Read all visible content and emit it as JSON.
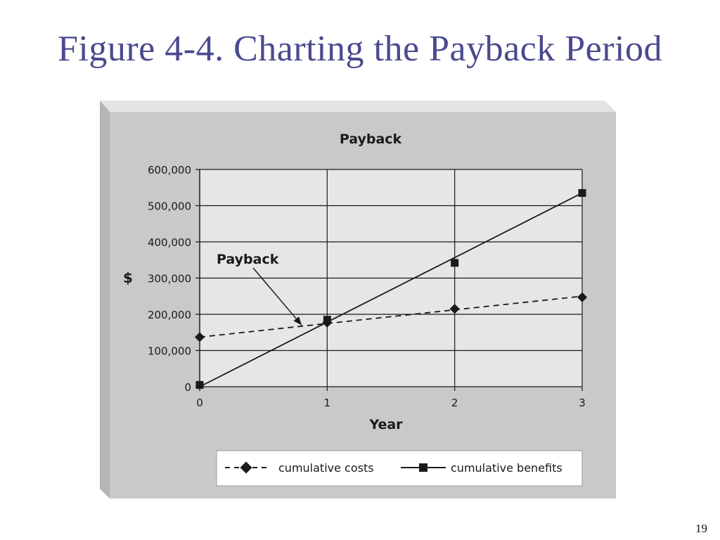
{
  "slide": {
    "title": "Figure 4-4. Charting the Payback Period",
    "page_number": "19"
  },
  "colors": {
    "title_color": "#4a4a8f",
    "panel_color": "#c9c9c9",
    "plot_area_color": "#e6e6e6",
    "ink_color": "#1a1a1a"
  },
  "chart_data": {
    "type": "line",
    "title": "Payback",
    "xlabel": "Year",
    "ylabel": "$",
    "x": [
      0,
      1,
      2,
      3
    ],
    "x_tick_labels": [
      "0",
      "1",
      "2",
      "3"
    ],
    "xlim": [
      0,
      3
    ],
    "ylim": [
      0,
      600000
    ],
    "y_ticks": [
      0,
      100000,
      200000,
      300000,
      400000,
      500000,
      600000
    ],
    "y_tick_labels": [
      "0",
      "100,000",
      "200,000",
      "300,000",
      "400,000",
      "500,000",
      "600,000"
    ],
    "grid": "horizontal",
    "legend_position": "bottom",
    "series": [
      {
        "name": "cumulative costs",
        "values": [
          137000,
          177000,
          215000,
          247000
        ],
        "line_style": "dashed",
        "marker": "diamond",
        "trend_endpoints": [
          137000,
          250000
        ]
      },
      {
        "name": "cumulative benefits",
        "values": [
          5000,
          185000,
          342000,
          535000
        ],
        "line_style": "solid",
        "marker": "square",
        "trend_endpoints": [
          0,
          535000
        ]
      }
    ],
    "annotations": [
      {
        "text": "Payback",
        "points_to_x": 0.8,
        "points_to_y": 170000
      }
    ]
  }
}
